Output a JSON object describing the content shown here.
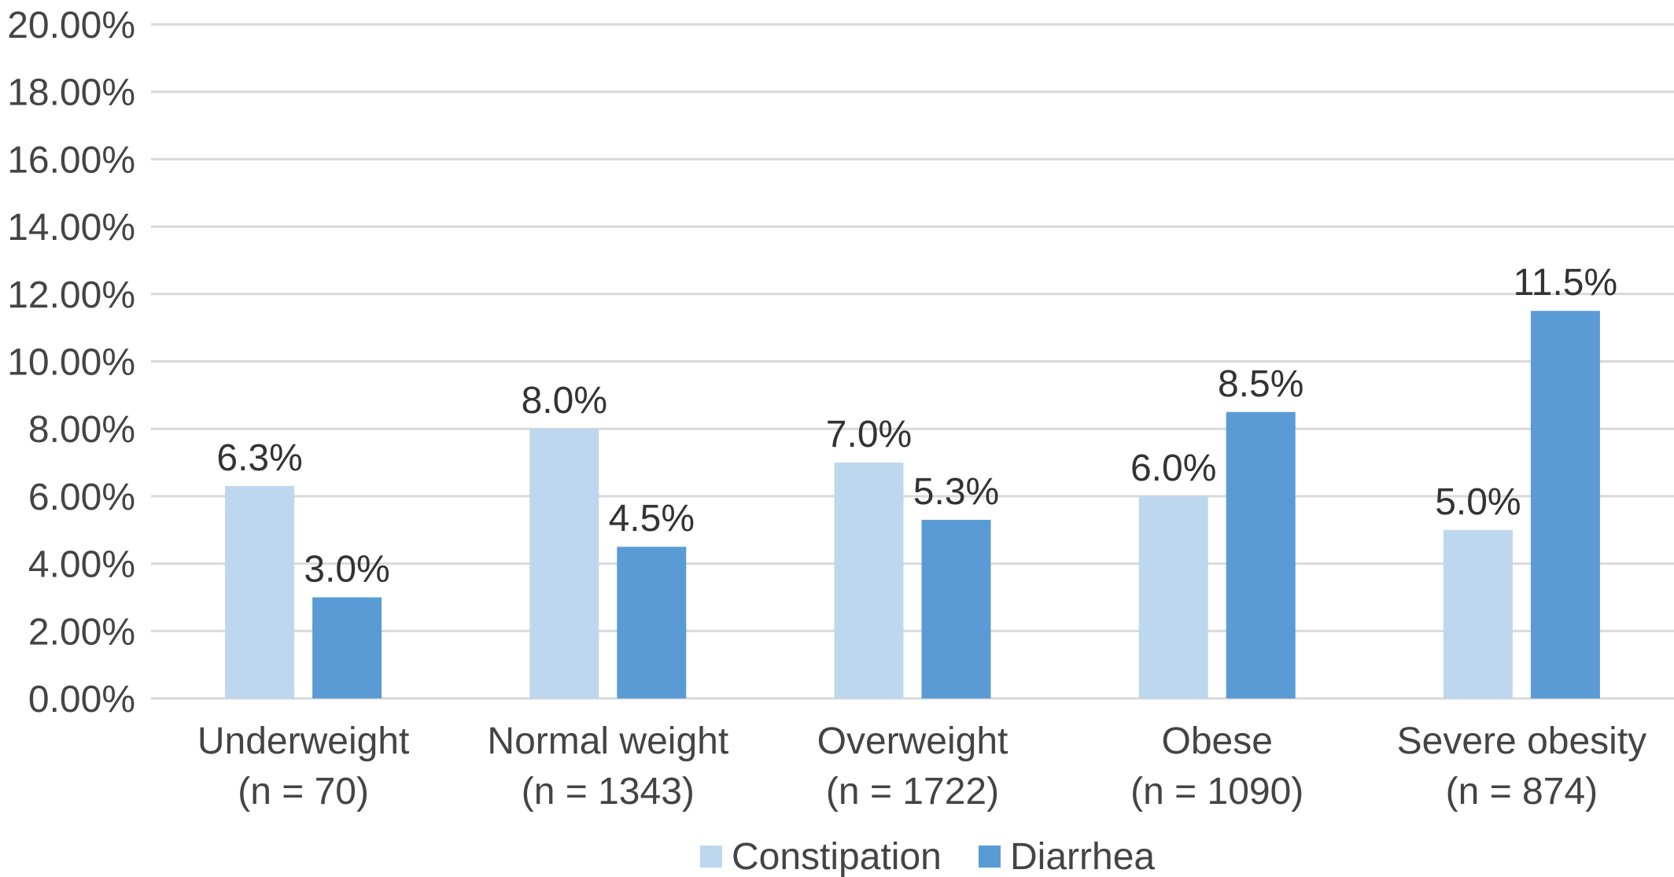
{
  "chart_data": {
    "type": "bar",
    "categories": [
      [
        "Underweight",
        "(n = 70)"
      ],
      [
        "Normal weight",
        "(n = 1343)"
      ],
      [
        "Overweight",
        "(n = 1722)"
      ],
      [
        "Obese",
        "(n = 1090)"
      ],
      [
        "Severe obesity",
        "(n = 874)"
      ]
    ],
    "series": [
      {
        "name": "Constipation",
        "color": "#bdd7ee",
        "values": [
          6.3,
          8.0,
          7.0,
          6.0,
          5.0
        ],
        "labels": [
          "6.3%",
          "8.0%",
          "7.0%",
          "6.0%",
          "5.0%"
        ]
      },
      {
        "name": "Diarrhea",
        "color": "#5b9bd5",
        "values": [
          3.0,
          4.5,
          5.3,
          8.5,
          11.5
        ],
        "labels": [
          "3.0%",
          "4.5%",
          "5.3%",
          "8.5%",
          "11.5%"
        ]
      }
    ],
    "yticks": [
      "0.00%",
      "2.00%",
      "4.00%",
      "6.00%",
      "8.00%",
      "10.00%",
      "12.00%",
      "14.00%",
      "16.00%",
      "18.00%",
      "20.00%"
    ],
    "ylim": [
      0,
      20
    ],
    "grid": true,
    "gridColor": "#d9d9d9",
    "legend_position": "bottom",
    "title": "",
    "xlabel": "",
    "ylabel": ""
  }
}
